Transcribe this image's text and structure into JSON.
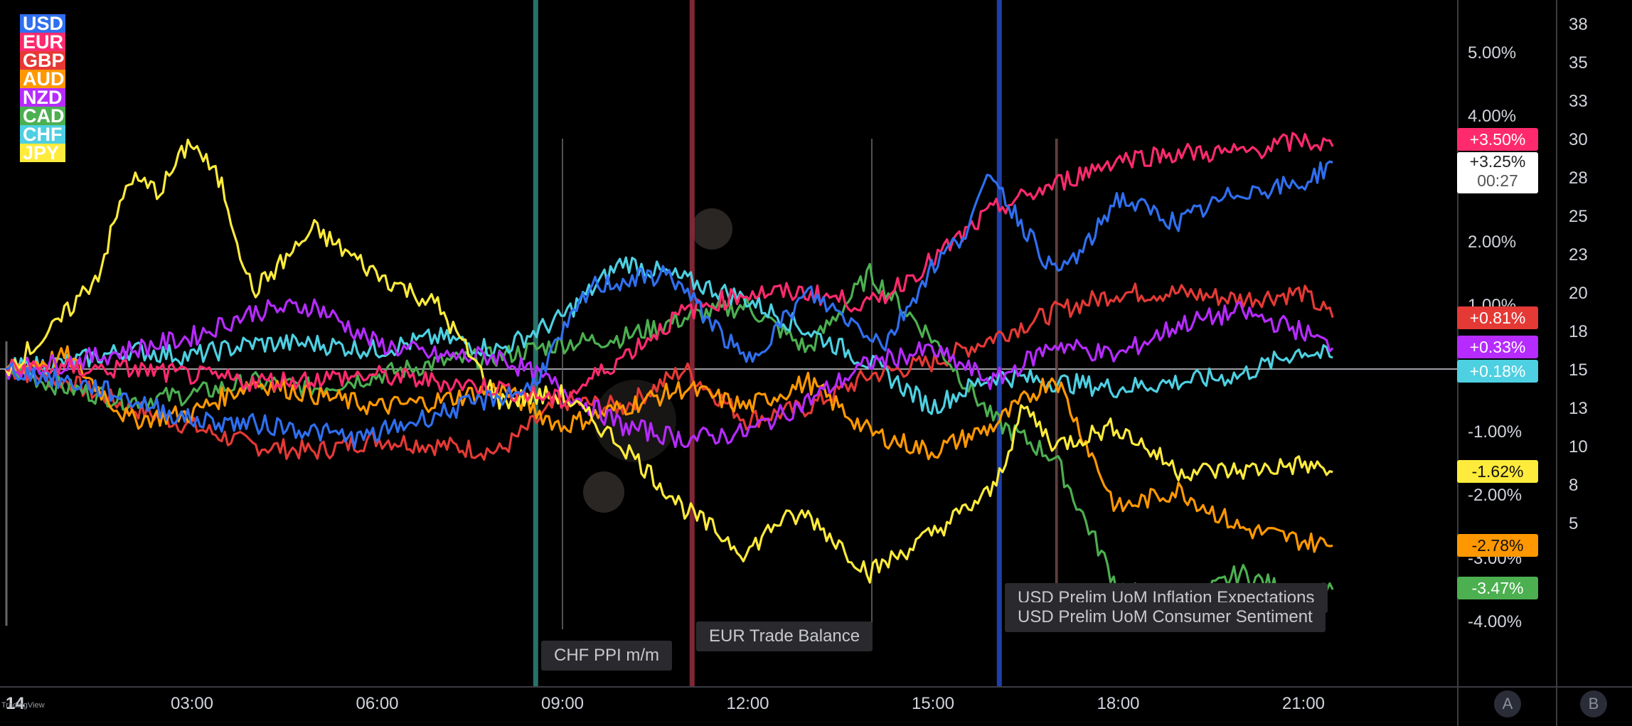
{
  "brand": {
    "watermark": "TradingView"
  },
  "chart_data": {
    "type": "line",
    "x_ticks": [
      "03:00",
      "06:00",
      "09:00",
      "12:00",
      "15:00",
      "18:00",
      "21:00"
    ],
    "x_start_label": "14",
    "y_ticks_pct": [
      "5.00%",
      "4.00%",
      "2.00%",
      "1.00%",
      "-1.00%",
      "-2.00%",
      "-3.00%",
      "-4.00%"
    ],
    "y_ticks_right": [
      "38",
      "35",
      "33",
      "30",
      "28",
      "25",
      "23",
      "20",
      "18",
      "15",
      "13",
      "10",
      "8",
      "5"
    ],
    "ylim_pct": [
      -4.5,
      5.5
    ],
    "series": [
      {
        "name": "USD",
        "color": "#2f6ff0",
        "last_label": "+3.25%",
        "countdown": "00:27",
        "x": [
          0,
          1.5,
          3,
          4.5,
          5.75,
          7,
          8.5,
          9.5,
          10.75,
          12,
          13,
          14.25,
          15,
          15.5,
          16,
          16.25,
          17,
          17.5,
          18,
          19,
          20,
          21,
          21.5
        ],
        "y": [
          0,
          -0.3,
          -0.8,
          -0.9,
          -1.1,
          -0.7,
          -0.3,
          1.3,
          1.5,
          0.1,
          1.2,
          0.4,
          1.6,
          2.1,
          3.1,
          2.6,
          1.5,
          1.9,
          2.7,
          2.3,
          2.8,
          2.9,
          3.25
        ]
      },
      {
        "name": "EUR",
        "color": "#ff2a6d",
        "last_label": "+3.50%",
        "x": [
          0,
          2,
          4,
          6,
          8,
          9,
          10,
          11,
          12,
          13,
          14,
          15,
          16,
          17,
          18,
          19,
          20,
          21,
          21.5
        ],
        "y": [
          0,
          0,
          -0.2,
          -0.1,
          -0.3,
          -0.5,
          0.2,
          0.9,
          1.2,
          1.2,
          1.0,
          1.7,
          2.5,
          2.9,
          3.3,
          3.4,
          3.4,
          3.6,
          3.5
        ]
      },
      {
        "name": "GBP",
        "color": "#e53935",
        "last_label": "+0.81%",
        "x": [
          0,
          1,
          2,
          3,
          4,
          5,
          6,
          7,
          8,
          9,
          10,
          11,
          12,
          13,
          14,
          15,
          16,
          17,
          18,
          19,
          20,
          21,
          21.5
        ],
        "y": [
          0,
          -0.2,
          -0.6,
          -0.9,
          -1.2,
          -1.3,
          -1.1,
          -1.2,
          -1.3,
          -0.5,
          -0.6,
          0,
          -0.8,
          -0.6,
          -0.1,
          0.1,
          0.5,
          0.9,
          1.2,
          1.2,
          1.1,
          1.2,
          0.81
        ]
      },
      {
        "name": "AUD",
        "color": "#ff9800",
        "last_label": "-2.78%",
        "x": [
          0,
          1,
          2,
          3,
          4,
          5,
          6,
          7,
          8,
          9,
          10,
          11,
          12,
          13,
          14,
          15,
          16,
          17,
          18,
          19,
          20,
          21,
          21.5
        ],
        "y": [
          0,
          0.2,
          -0.8,
          -0.7,
          -0.2,
          -0.4,
          -0.6,
          -0.5,
          -0.3,
          -0.9,
          -0.6,
          -0.3,
          -0.6,
          -0.2,
          -1.0,
          -1.3,
          -0.9,
          -0.1,
          -2.2,
          -1.9,
          -2.5,
          -2.7,
          -2.78
        ]
      },
      {
        "name": "NZD",
        "color": "#b62bff",
        "last_label": "+0.33%",
        "x": [
          0,
          1,
          2,
          3,
          4,
          5,
          6,
          7,
          8,
          9,
          10,
          11,
          12,
          13,
          14,
          15,
          16,
          17,
          18,
          19,
          20,
          21,
          21.5
        ],
        "y": [
          0,
          0.1,
          0.3,
          0.5,
          0.9,
          1.0,
          0.4,
          0.2,
          0.2,
          -0.3,
          -0.9,
          -1.1,
          -1.0,
          -0.5,
          0.1,
          0.3,
          -0.2,
          0.4,
          0.2,
          0.7,
          0.9,
          0.6,
          0.33
        ]
      },
      {
        "name": "CAD",
        "color": "#4caf50",
        "last_label": "-3.47%",
        "x": [
          0,
          1,
          2,
          3,
          4,
          5,
          6,
          7,
          8,
          9,
          10,
          11,
          12,
          13,
          14,
          15,
          16,
          17,
          18,
          19,
          20,
          21,
          21.5
        ],
        "y": [
          0,
          -0.3,
          -0.5,
          -0.4,
          -0.2,
          -0.3,
          -0.1,
          0.1,
          0.2,
          0.4,
          0.5,
          0.8,
          1.0,
          0.3,
          1.5,
          0.5,
          -0.8,
          -1.4,
          -3.4,
          -3.8,
          -3.2,
          -3.6,
          -3.47
        ]
      },
      {
        "name": "CHF",
        "color": "#4dd0e1",
        "last_label": "+0.18%",
        "x": [
          0,
          1,
          2,
          3,
          4,
          5,
          6,
          7,
          8,
          9,
          10,
          11,
          12,
          13,
          14,
          15,
          16,
          17,
          18,
          19,
          20,
          21,
          21.5
        ],
        "y": [
          0,
          0.1,
          0.3,
          0.2,
          0.4,
          0.4,
          0.3,
          0.5,
          0.3,
          0.8,
          1.7,
          1.4,
          1.1,
          0.6,
          0.1,
          -0.6,
          -0.1,
          -0.2,
          -0.3,
          -0.2,
          -0.1,
          0.3,
          0.18
        ]
      },
      {
        "name": "JPY",
        "color": "#ffeb3b",
        "last_label": "-1.62%",
        "x": [
          0,
          0.75,
          1.5,
          2,
          2.5,
          3,
          3.5,
          4,
          5,
          6,
          7,
          8,
          9,
          10,
          11,
          12,
          12.5,
          13,
          14,
          15,
          16,
          16.5,
          17,
          18,
          19,
          20,
          21,
          21.5
        ],
        "y": [
          0,
          0.6,
          1.5,
          3.0,
          2.8,
          3.6,
          2.9,
          1.2,
          2.2,
          1.5,
          1.0,
          -0.5,
          -0.4,
          -1.2,
          -2.2,
          -2.9,
          -2.4,
          -2.3,
          -3.2,
          -2.6,
          -1.9,
          -0.6,
          -1.2,
          -0.9,
          -1.6,
          -1.6,
          -1.5,
          -1.62
        ]
      }
    ],
    "events": [
      {
        "label": "CHF PPI m/m",
        "x": 8.5,
        "color": "#2e7d73"
      },
      {
        "label": "EUR Trade Balance",
        "x": 11,
        "color": "#8c2a3c"
      },
      {
        "label": "USD Prelim UoM Inflation Expectations",
        "x": 16,
        "color": "#2046b8"
      },
      {
        "label": "USD Prelim UoM Consumer Sentiment",
        "x": 16,
        "color": "#2046b8"
      }
    ]
  },
  "bottom_buttons": {
    "a": "A",
    "b": "B"
  }
}
